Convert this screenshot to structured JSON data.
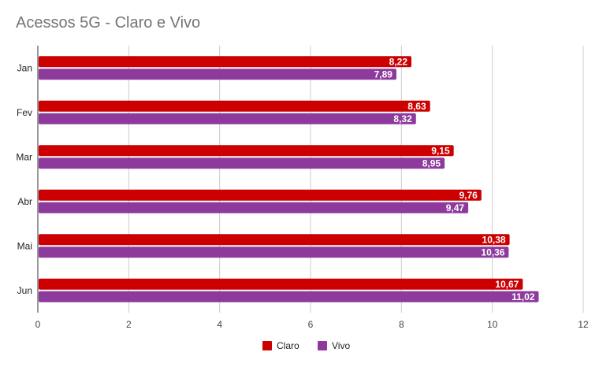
{
  "chart_data": {
    "type": "bar",
    "orientation": "horizontal",
    "title": "Acessos 5G - Claro e Vivo",
    "xlabel": "",
    "ylabel": "",
    "categories": [
      "Jan",
      "Fev",
      "Mar",
      "Abr",
      "Mai",
      "Jun"
    ],
    "series": [
      {
        "name": "Claro",
        "color": "#cc0000",
        "values": [
          8.22,
          8.63,
          9.15,
          9.76,
          10.38,
          10.67
        ],
        "labels": [
          "8,22",
          "8,63",
          "9,15",
          "9,76",
          "10,38",
          "10,67"
        ]
      },
      {
        "name": "Vivo",
        "color": "#8e3a9d",
        "values": [
          7.89,
          8.32,
          8.95,
          9.47,
          10.36,
          11.02
        ],
        "labels": [
          "7,89",
          "8,32",
          "8,95",
          "9,47",
          "10,36",
          "11,02"
        ]
      }
    ],
    "xlim": [
      0,
      12
    ],
    "xticks": [
      0,
      2,
      4,
      6,
      8,
      10,
      12
    ],
    "grid": true,
    "legend_position": "bottom"
  }
}
